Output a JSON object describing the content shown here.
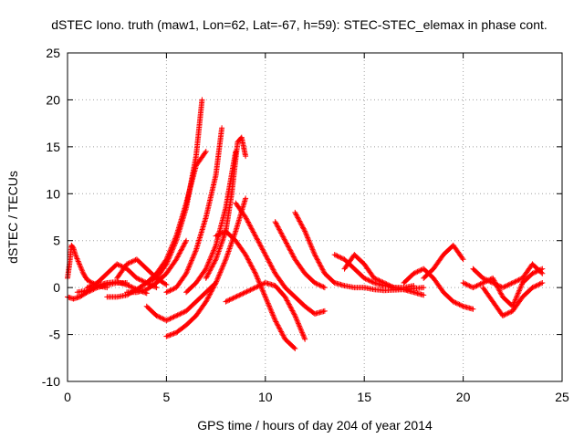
{
  "chart_data": {
    "type": "scatter",
    "title": "dSTEC Iono. truth (maw1, Lon=62, Lat=-67, h=59): STEC-STEC_elemax in phase cont.",
    "xlabel": "GPS time / hours of day 204 of year 2014",
    "ylabel": "dSTEC  / TECUs",
    "xlim": [
      0,
      25
    ],
    "ylim": [
      -10,
      25
    ],
    "xticks": [
      0,
      5,
      10,
      15,
      20,
      25
    ],
    "yticks": [
      -10,
      -5,
      0,
      5,
      10,
      15,
      20,
      25
    ],
    "xtick_labels": [
      "0",
      "5",
      "10",
      "15",
      "20",
      "25"
    ],
    "ytick_labels": [
      "-10",
      "-5",
      "0",
      "5",
      "10",
      "15",
      "20",
      "25"
    ],
    "grid": true,
    "marker": "plus",
    "color": "#ff0000",
    "series": [
      {
        "x": [
          0.0,
          0.1,
          0.2,
          0.3,
          0.4,
          0.6,
          0.8,
          1.0,
          1.5,
          2.0
        ],
        "y": [
          1.0,
          2.5,
          4.5,
          4.2,
          3.5,
          2.5,
          1.5,
          0.8,
          0.2,
          0.0
        ]
      },
      {
        "x": [
          0.0,
          0.3,
          0.6,
          1.0,
          1.5,
          2.0,
          2.5,
          3.0
        ],
        "y": [
          -1.0,
          -1.2,
          -1.0,
          -0.5,
          0.0,
          0.3,
          0.5,
          0.5
        ]
      },
      {
        "x": [
          0.5,
          1.0,
          1.5,
          2.0,
          2.5,
          3.0,
          3.5,
          4.0
        ],
        "y": [
          -0.5,
          -0.3,
          0.2,
          0.5,
          0.6,
          0.3,
          -0.2,
          -0.6
        ]
      },
      {
        "x": [
          1.0,
          1.5,
          2.0,
          2.5,
          3.0,
          3.5,
          4.0,
          4.5
        ],
        "y": [
          0.0,
          0.5,
          1.5,
          2.5,
          2.0,
          1.0,
          0.5,
          0.0
        ]
      },
      {
        "x": [
          2.5,
          3.0,
          3.5,
          4.0,
          4.5,
          5.0
        ],
        "y": [
          1.0,
          2.5,
          3.0,
          2.0,
          1.0,
          0.3
        ]
      },
      {
        "x": [
          3.0,
          3.5,
          4.0,
          4.5,
          5.0,
          5.5,
          6.0
        ],
        "y": [
          -0.5,
          -0.5,
          -0.2,
          0.5,
          1.5,
          3.0,
          5.0
        ]
      },
      {
        "x": [
          2.0,
          2.5,
          3.0,
          3.5,
          4.0,
          4.5,
          5.0,
          5.5,
          6.0,
          6.5,
          7.0
        ],
        "y": [
          -1.0,
          -1.0,
          -0.8,
          -0.2,
          0.5,
          1.5,
          3.0,
          5.5,
          9.0,
          13.0,
          14.5
        ]
      },
      {
        "x": [
          4.0,
          4.5,
          5.0,
          5.5,
          6.0,
          6.5,
          6.8
        ],
        "y": [
          0.5,
          1.0,
          2.5,
          5.0,
          8.5,
          14.0,
          20.0
        ]
      },
      {
        "x": [
          5.0,
          5.5,
          6.0,
          6.5,
          7.0,
          7.5,
          7.8
        ],
        "y": [
          -0.5,
          0.0,
          1.5,
          4.0,
          7.5,
          12.0,
          17.0
        ]
      },
      {
        "x": [
          6.0,
          6.5,
          7.0,
          7.5,
          8.0,
          8.5
        ],
        "y": [
          -0.5,
          0.5,
          2.0,
          4.5,
          8.5,
          14.5
        ]
      },
      {
        "x": [
          7.0,
          7.5,
          8.0,
          8.3,
          8.6,
          8.8,
          9.0
        ],
        "y": [
          1.0,
          3.0,
          6.0,
          10.0,
          15.5,
          16.0,
          14.0
        ]
      },
      {
        "x": [
          4.0,
          4.5,
          5.0,
          5.5,
          6.0,
          6.5,
          7.0,
          7.5
        ],
        "y": [
          -2.0,
          -3.0,
          -3.5,
          -3.0,
          -2.5,
          -1.5,
          -0.5,
          0.5
        ]
      },
      {
        "x": [
          5.0,
          5.5,
          6.0,
          6.5,
          7.0,
          7.5,
          8.0,
          8.5,
          9.0
        ],
        "y": [
          -5.2,
          -4.8,
          -4.0,
          -3.0,
          -1.5,
          0.5,
          3.0,
          6.0,
          9.5
        ]
      },
      {
        "x": [
          7.5,
          8.0,
          8.5,
          9.0,
          9.5,
          10.0,
          10.5,
          11.0,
          11.5
        ],
        "y": [
          5.5,
          6.0,
          5.0,
          3.5,
          1.5,
          -1.0,
          -3.5,
          -5.5,
          -6.5
        ]
      },
      {
        "x": [
          8.0,
          8.5,
          9.0,
          9.5,
          10.0,
          10.5,
          11.0,
          11.5,
          12.0
        ],
        "y": [
          -1.5,
          -1.0,
          -0.5,
          0.0,
          0.5,
          0.2,
          -1.0,
          -3.0,
          -5.5
        ]
      },
      {
        "x": [
          8.5,
          9.0,
          9.5,
          10.0,
          10.5,
          11.0,
          11.5,
          12.0,
          12.5,
          13.0
        ],
        "y": [
          9.0,
          7.5,
          5.5,
          3.5,
          1.5,
          0.0,
          -1.0,
          -2.0,
          -2.8,
          -2.5
        ]
      },
      {
        "x": [
          10.5,
          11.0,
          11.5,
          12.0,
          12.5,
          13.0
        ],
        "y": [
          7.0,
          5.0,
          3.0,
          1.5,
          0.5,
          0.0
        ]
      },
      {
        "x": [
          11.5,
          12.0,
          12.5,
          13.0,
          13.5,
          14.0,
          14.5,
          15.0,
          15.5,
          16.0,
          17.0,
          18.0
        ],
        "y": [
          8.0,
          6.0,
          3.5,
          1.5,
          0.5,
          0.2,
          0.0,
          0.0,
          -0.2,
          -0.3,
          -0.2,
          0.0
        ]
      },
      {
        "x": [
          13.5,
          14.0,
          14.5,
          15.0,
          15.5,
          16.0,
          16.5,
          17.0,
          17.5
        ],
        "y": [
          3.5,
          3.0,
          2.0,
          1.0,
          0.5,
          0.2,
          0.0,
          0.0,
          0.2
        ]
      },
      {
        "x": [
          14.0,
          14.5,
          15.0,
          15.5,
          16.0,
          16.5,
          17.0,
          17.5,
          18.0
        ],
        "y": [
          2.0,
          3.5,
          2.5,
          1.0,
          0.5,
          0.0,
          -0.2,
          -0.5,
          -0.8
        ]
      },
      {
        "x": [
          17.0,
          17.5,
          18.0,
          18.5,
          19.0,
          19.5,
          20.0,
          20.5
        ],
        "y": [
          0.5,
          1.5,
          2.0,
          1.0,
          -0.5,
          -1.5,
          -2.0,
          -2.3
        ]
      },
      {
        "x": [
          18.0,
          18.5,
          19.0,
          19.5,
          20.0
        ],
        "y": [
          1.0,
          2.0,
          3.5,
          4.5,
          3.0
        ]
      },
      {
        "x": [
          20.0,
          20.5,
          21.0,
          21.5,
          22.0,
          22.5,
          23.0,
          23.5,
          24.0
        ],
        "y": [
          0.5,
          0.0,
          0.5,
          1.0,
          -1.0,
          -2.0,
          0.5,
          1.5,
          2.0
        ]
      },
      {
        "x": [
          21.0,
          21.5,
          22.0,
          22.5,
          23.0,
          23.5,
          24.0
        ],
        "y": [
          0.0,
          -1.5,
          -3.0,
          -2.5,
          -1.0,
          0.0,
          0.5
        ]
      },
      {
        "x": [
          20.5,
          21.0,
          21.5,
          22.0,
          22.5,
          23.0,
          23.5,
          24.0
        ],
        "y": [
          2.0,
          1.0,
          0.5,
          0.0,
          0.5,
          1.0,
          2.5,
          1.5
        ]
      }
    ]
  }
}
